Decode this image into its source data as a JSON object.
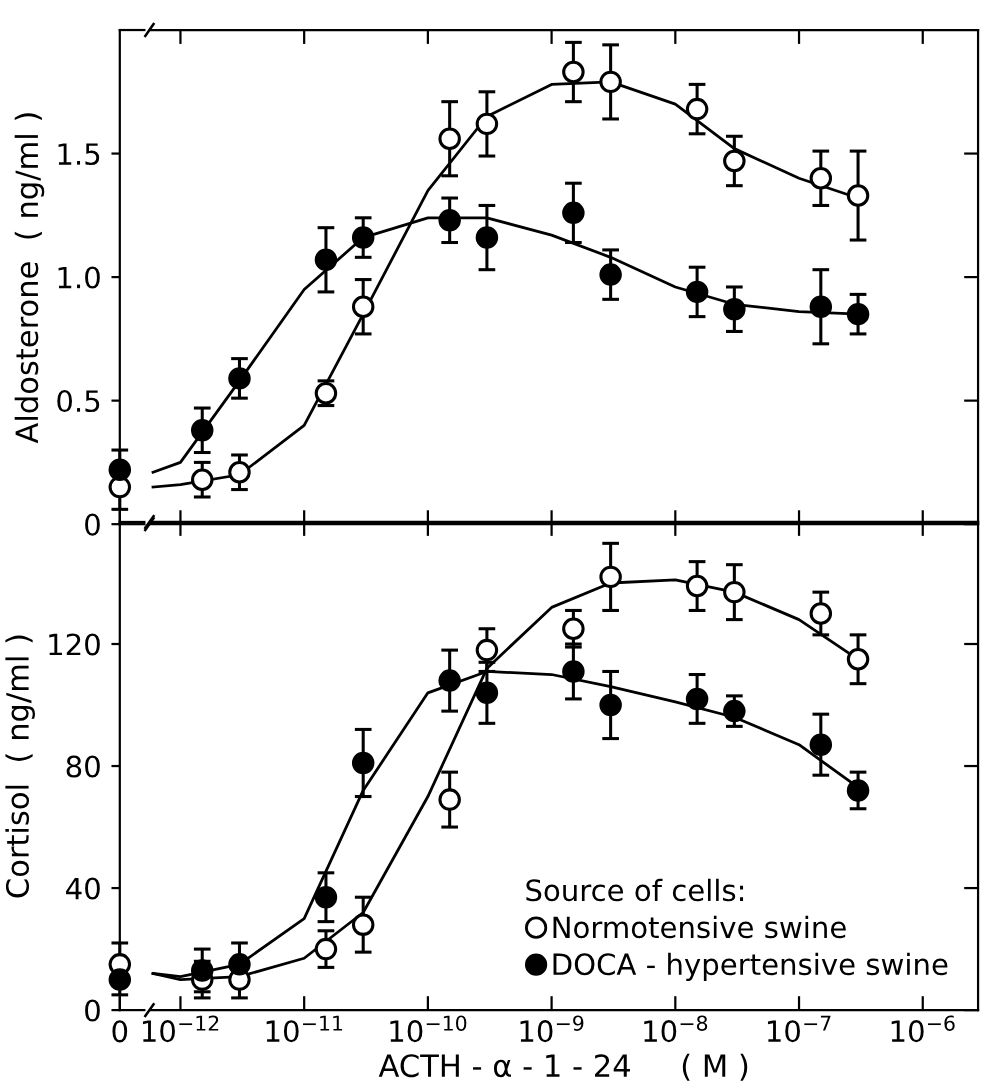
{
  "chart_data": [
    {
      "type": "scatter",
      "ylabel": "Aldosterone  ( ng/ml )",
      "tick_labels": "y",
      "legend": false,
      "categories": [
        "0"
      ],
      "ylim": [
        0,
        2.0
      ],
      "yticks": [
        0,
        {
          "value": 0.5,
          "label": "0.5"
        },
        {
          "value": 1.0,
          "label": "1.0"
        },
        {
          "value": 1.5,
          "label": "1.5"
        }
      ],
      "series": [
        {
          "marker": "circle",
          "color": "#ffffff",
          "values": [
            0.15
          ],
          "errors": [
            0.09
          ]
        },
        {
          "marker": "circle",
          "color": "#000000",
          "values": [
            0.22
          ],
          "errors": [
            0.08
          ]
        }
      ]
    },
    {
      "type": "scatter",
      "tick_labels": false,
      "legend": false,
      "log": "x",
      "x": [
        1.5e-12,
        3e-12,
        1.5e-11,
        3e-11,
        1.5e-10,
        3e-10,
        1.5e-09,
        3e-09,
        1.5e-08,
        3e-08,
        1.5e-07,
        3e-07
      ],
      "xlim": [
        5.7e-13,
        2.8e-06
      ],
      "xticks": [
        {
          "value": 1e-12,
          "label": null
        },
        {
          "value": 1e-11,
          "label": null
        },
        {
          "value": 1e-10,
          "label": null
        },
        {
          "value": 1e-09,
          "label": null
        },
        {
          "value": 1e-08,
          "label": null
        },
        {
          "value": 1e-07,
          "label": null
        },
        {
          "value": 1e-06,
          "label": null
        }
      ],
      "ylim": [
        0,
        2.0
      ],
      "yticks": [
        {
          "value": 0,
          "label": null
        },
        {
          "value": 0.5,
          "label": null
        },
        {
          "value": 1.0,
          "label": null
        },
        {
          "value": 1.5,
          "label": null
        }
      ],
      "series": [
        {
          "marker": "circle",
          "color": "#ffffff",
          "values": [
            0.18,
            0.21,
            0.53,
            0.88,
            1.56,
            1.62,
            1.83,
            1.79,
            1.68,
            1.47,
            1.4,
            1.33
          ],
          "errors": [
            0.07,
            0.07,
            0.05,
            0.11,
            0.15,
            0.13,
            0.12,
            0.15,
            0.1,
            0.1,
            0.11,
            0.18
          ]
        },
        {
          "marker": "circle",
          "color": "#000000",
          "values": [
            0.38,
            0.59,
            1.07,
            1.16,
            1.23,
            1.16,
            1.26,
            1.01,
            0.94,
            0.87,
            0.88,
            0.85
          ],
          "errors": [
            0.09,
            0.08,
            0.13,
            0.08,
            0.09,
            0.13,
            0.12,
            0.1,
            0.1,
            0.09,
            0.15,
            0.08
          ]
        },
        {
          "type": "line",
          "color": "#000000",
          "x": [
            6e-13,
            1e-12,
            3e-12,
            1e-11,
            3e-11,
            1e-10,
            3e-10,
            1e-09,
            3e-09,
            1e-08,
            3e-08,
            1e-07,
            3e-07
          ],
          "values": [
            0.15,
            0.16,
            0.2,
            0.4,
            0.85,
            1.35,
            1.65,
            1.78,
            1.79,
            1.7,
            1.52,
            1.4,
            1.32
          ]
        },
        {
          "type": "line",
          "color": "#000000",
          "x": [
            6e-13,
            1e-12,
            3e-12,
            1e-11,
            3e-11,
            1e-10,
            3e-10,
            1e-09,
            3e-09,
            1e-08,
            3e-08,
            1e-07,
            3e-07
          ],
          "values": [
            0.21,
            0.25,
            0.58,
            0.95,
            1.16,
            1.24,
            1.24,
            1.17,
            1.08,
            0.96,
            0.89,
            0.86,
            0.85
          ]
        }
      ]
    },
    {
      "type": "scatter",
      "ylabel": "Cortisol  ( ng/ml )",
      "legend": false,
      "categories": [
        "0"
      ],
      "ylim": [
        0,
        160
      ],
      "yticks": [
        0,
        40,
        80,
        120
      ],
      "series": [
        {
          "marker": "circle",
          "color": "#ffffff",
          "values": [
            15
          ],
          "errors": [
            7
          ]
        },
        {
          "marker": "circle",
          "color": "#000000",
          "values": [
            10
          ],
          "errors": [
            5
          ]
        }
      ]
    },
    {
      "type": "scatter",
      "tick_labels": "x",
      "xlabel": "ACTH - α - 1 - 24     ( M )",
      "legend": "bottom right",
      "legend_title": "Source of cells:",
      "log": "x",
      "x": [
        1.5e-12,
        3e-12,
        1.5e-11,
        3e-11,
        1.5e-10,
        3e-10,
        1.5e-09,
        3e-09,
        1.5e-08,
        3e-08,
        1.5e-07,
        3e-07
      ],
      "xlim": [
        5.7e-13,
        2.8e-06
      ],
      "xticks": [
        {
          "value": 1e-12,
          "label": "10$^{−12}$"
        },
        {
          "value": 1e-11,
          "label": "10$^{−11}$"
        },
        {
          "value": 1e-10,
          "label": "10$^{−10}$"
        },
        {
          "value": 1e-09,
          "label": "10$^{−9}$"
        },
        {
          "value": 1e-08,
          "label": "10$^{−8}$"
        },
        {
          "value": 1e-07,
          "label": "10$^{−7}$"
        },
        {
          "value": 1e-06,
          "label": "10$^{−6}$"
        }
      ],
      "ylim": [
        0,
        160
      ],
      "yticks": [
        {
          "value": 0,
          "label": null
        },
        {
          "value": 40,
          "label": null
        },
        {
          "value": 80,
          "label": null
        },
        {
          "value": 120,
          "label": null
        }
      ],
      "series": [
        {
          "name": "Normotensive swine",
          "marker": "circle",
          "color": "#ffffff",
          "values": [
            10,
            10,
            20,
            28,
            69,
            118,
            125,
            142,
            139,
            137,
            130,
            115
          ],
          "errors": [
            6,
            6,
            6,
            9,
            9,
            7,
            6,
            11,
            8,
            9,
            7,
            8
          ]
        },
        {
          "name": "DOCA - hypertensive swine",
          "marker": "circle",
          "color": "#000000",
          "values": [
            13,
            15,
            37,
            81,
            108,
            104,
            111,
            100,
            102,
            98,
            87,
            72
          ],
          "errors": [
            7,
            7,
            8,
            11,
            10,
            10,
            9,
            11,
            8,
            5,
            10,
            6
          ]
        },
        {
          "type": "line",
          "color": "#000000",
          "x": [
            6e-13,
            1e-12,
            3e-12,
            1e-11,
            3e-11,
            1e-10,
            3e-10,
            1e-09,
            3e-09,
            1e-08,
            3e-08,
            1e-07,
            3e-07
          ],
          "values": [
            12,
            10,
            11,
            17,
            32,
            70,
            112,
            132,
            140,
            141,
            137,
            128,
            115
          ]
        },
        {
          "type": "line",
          "color": "#000000",
          "x": [
            6e-13,
            1e-12,
            3e-12,
            1e-11,
            3e-11,
            1e-10,
            3e-10,
            1e-09,
            3e-09,
            1e-08,
            3e-08,
            1e-07,
            3e-07
          ],
          "values": [
            12,
            11,
            15,
            30,
            72,
            104,
            111,
            110,
            106,
            101,
            96,
            87,
            73
          ]
        }
      ]
    }
  ]
}
